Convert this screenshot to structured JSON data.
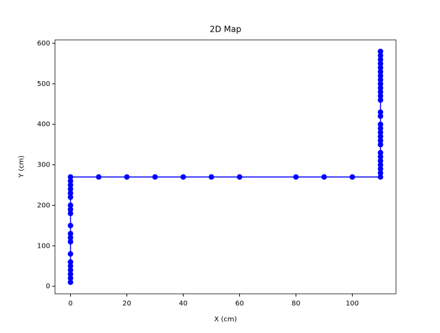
{
  "chart_data": {
    "type": "line",
    "title": "2D Map",
    "x_label": "X (cm)",
    "y_label": "Y (cm)",
    "series": [
      {
        "color": "#0000ff",
        "x": [
          0,
          0,
          0,
          0,
          0,
          0,
          0,
          0,
          0,
          0,
          0,
          0,
          0,
          0,
          0,
          0,
          0,
          0,
          0,
          0,
          10,
          20,
          30,
          40,
          50,
          60,
          80,
          90,
          100,
          110,
          110,
          110,
          110,
          110,
          110,
          110,
          110,
          110,
          110,
          110,
          110,
          110,
          110,
          110,
          110,
          110,
          110,
          110,
          110,
          110,
          110,
          110,
          110,
          110,
          110,
          110,
          110
        ],
        "values": [
          10,
          20,
          30,
          40,
          50,
          60,
          80,
          110,
          120,
          130,
          150,
          180,
          190,
          200,
          220,
          230,
          240,
          250,
          260,
          270,
          270,
          270,
          270,
          270,
          270,
          270,
          270,
          270,
          270,
          270,
          280,
          290,
          300,
          310,
          320,
          330,
          350,
          360,
          370,
          380,
          390,
          400,
          420,
          430,
          460,
          470,
          480,
          490,
          500,
          510,
          520,
          530,
          540,
          550,
          560,
          570,
          580
        ]
      }
    ],
    "xlim": [
      -5.5,
      115.5
    ],
    "xticks": [
      0,
      20,
      40,
      60,
      80,
      100
    ],
    "ylim": [
      -18.5,
      608.5
    ],
    "yticks": [
      0,
      100,
      200,
      300,
      400,
      500,
      600
    ],
    "grid": false
  }
}
